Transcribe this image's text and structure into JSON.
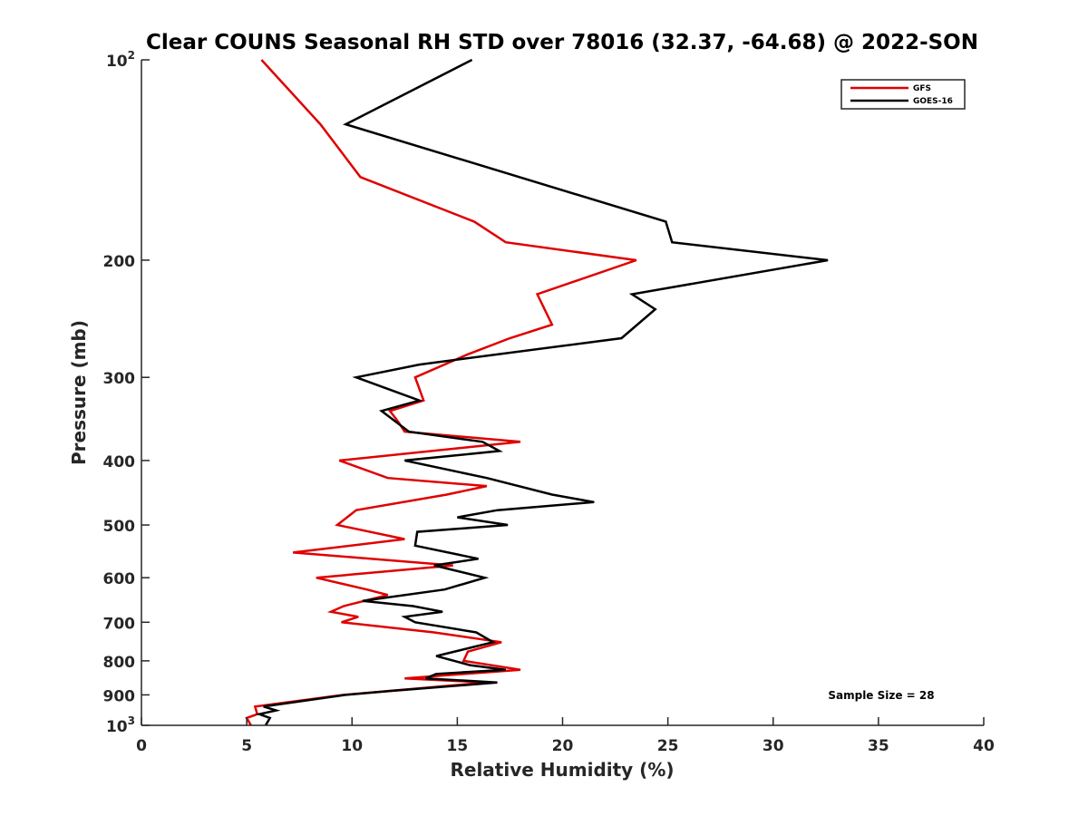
{
  "chart_data": {
    "type": "line",
    "title": "Clear COUNS Seasonal RH STD over 78016 (32.37, -64.68) @ 2022-SON",
    "xlabel": "Relative Humidity (%)",
    "ylabel": "Pressure (mb)",
    "xlim": [
      0,
      40
    ],
    "ylim": [
      100,
      1000
    ],
    "y_scale": "log",
    "y_reversed": true,
    "x_ticks": [
      0,
      5,
      10,
      15,
      20,
      25,
      30,
      35,
      40
    ],
    "x_tick_labels": [
      "0",
      "5",
      "10",
      "15",
      "20",
      "25",
      "30",
      "35",
      "40"
    ],
    "y_ticks": [
      100,
      200,
      300,
      400,
      500,
      600,
      700,
      800,
      900,
      1000
    ],
    "y_tick_labels": [
      {
        "base": "10",
        "exp": "2"
      },
      {
        "base": "200",
        "exp": ""
      },
      {
        "base": "300",
        "exp": ""
      },
      {
        "base": "400",
        "exp": ""
      },
      {
        "base": "500",
        "exp": ""
      },
      {
        "base": "600",
        "exp": ""
      },
      {
        "base": "700",
        "exp": ""
      },
      {
        "base": "800",
        "exp": ""
      },
      {
        "base": "900",
        "exp": ""
      },
      {
        "base": "10",
        "exp": "3"
      }
    ],
    "grid": false,
    "legend_position": "top-right",
    "annotation": "Sample Size = 28",
    "series": [
      {
        "name": "GFS",
        "color": "#e00000",
        "points": [
          [
            5.7,
            100
          ],
          [
            8.5,
            125
          ],
          [
            10.4,
            150
          ],
          [
            15.8,
            175
          ],
          [
            17.3,
            188
          ],
          [
            23.5,
            200
          ],
          [
            18.8,
            225
          ],
          [
            19.5,
            250
          ],
          [
            17.5,
            262
          ],
          [
            15.5,
            277
          ],
          [
            13.0,
            300
          ],
          [
            13.4,
            325
          ],
          [
            11.8,
            337
          ],
          [
            12.2,
            350
          ],
          [
            12.5,
            362
          ],
          [
            18.0,
            375
          ],
          [
            9.4,
            400
          ],
          [
            11.7,
            425
          ],
          [
            16.4,
            437
          ],
          [
            14.5,
            450
          ],
          [
            10.2,
            475
          ],
          [
            9.3,
            500
          ],
          [
            12.5,
            525
          ],
          [
            7.2,
            550
          ],
          [
            14.8,
            575
          ],
          [
            8.3,
            600
          ],
          [
            10.7,
            625
          ],
          [
            11.7,
            637
          ],
          [
            9.6,
            662
          ],
          [
            9.0,
            675
          ],
          [
            10.3,
            687
          ],
          [
            9.5,
            700
          ],
          [
            13.9,
            725
          ],
          [
            17.1,
            750
          ],
          [
            15.5,
            775
          ],
          [
            15.3,
            800
          ],
          [
            18.0,
            825
          ],
          [
            12.5,
            850
          ],
          [
            16.4,
            862
          ],
          [
            9.6,
            900
          ],
          [
            5.4,
            937
          ],
          [
            5.5,
            962
          ],
          [
            5.0,
            975
          ],
          [
            5.2,
            1000
          ]
        ]
      },
      {
        "name": "GOES-16",
        "color": "#000000",
        "points": [
          [
            15.7,
            100
          ],
          [
            9.7,
            125
          ],
          [
            24.9,
            175
          ],
          [
            25.2,
            188
          ],
          [
            32.6,
            200
          ],
          [
            23.3,
            225
          ],
          [
            24.4,
            237
          ],
          [
            22.8,
            262
          ],
          [
            13.2,
            287
          ],
          [
            10.2,
            300
          ],
          [
            13.2,
            325
          ],
          [
            11.4,
            337
          ],
          [
            12.7,
            362
          ],
          [
            16.2,
            375
          ],
          [
            17.0,
            387
          ],
          [
            12.5,
            400
          ],
          [
            16.4,
            425
          ],
          [
            19.5,
            450
          ],
          [
            21.5,
            462
          ],
          [
            16.9,
            475
          ],
          [
            15.0,
            487
          ],
          [
            17.4,
            500
          ],
          [
            13.1,
            512
          ],
          [
            13.0,
            537
          ],
          [
            16.0,
            562
          ],
          [
            13.9,
            575
          ],
          [
            16.3,
            600
          ],
          [
            14.4,
            625
          ],
          [
            10.5,
            650
          ],
          [
            12.9,
            662
          ],
          [
            14.3,
            675
          ],
          [
            12.5,
            687
          ],
          [
            13.0,
            700
          ],
          [
            15.9,
            725
          ],
          [
            16.7,
            750
          ],
          [
            15.8,
            762
          ],
          [
            14.0,
            787
          ],
          [
            15.6,
            812
          ],
          [
            17.3,
            825
          ],
          [
            14.0,
            837
          ],
          [
            13.5,
            850
          ],
          [
            16.9,
            862
          ],
          [
            12.0,
            887
          ],
          [
            9.7,
            900
          ],
          [
            5.8,
            937
          ],
          [
            6.4,
            950
          ],
          [
            5.6,
            962
          ],
          [
            6.1,
            975
          ],
          [
            5.9,
            1000
          ]
        ]
      }
    ]
  }
}
